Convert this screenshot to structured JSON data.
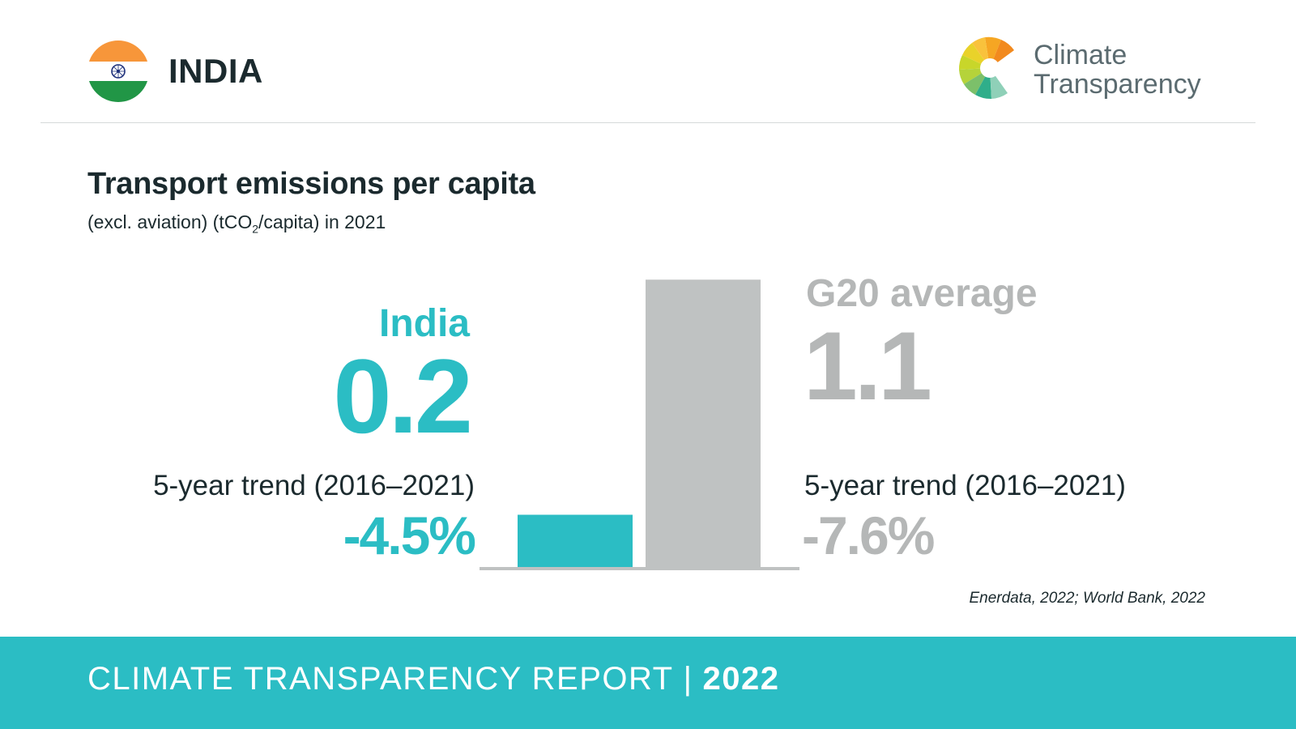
{
  "header": {
    "country": "INDIA",
    "logo_line1": "Climate",
    "logo_line2": "Transparency",
    "flag_icon": "india-flag-icon"
  },
  "chart_data": {
    "type": "bar",
    "title": "Transport emissions per capita",
    "subtitle_pre": "(excl. aviation) (tCO",
    "subtitle_sub": "2",
    "subtitle_post": "/capita) in 2021",
    "categories": [
      "India",
      "G20 average"
    ],
    "values": [
      0.2,
      1.1
    ],
    "value_labels": [
      "0.2",
      "1.1"
    ],
    "colors": [
      "#2bbdc4",
      "#bfc2c2"
    ],
    "ylim": [
      0,
      1.2
    ],
    "grid": false,
    "trends": [
      {
        "label": "5-year trend (2016–2021)",
        "value": "-4.5%"
      },
      {
        "label": "5-year trend (2016–2021)",
        "value": "-7.6%"
      }
    ]
  },
  "source": "Enerdata, 2022; World Bank, 2022",
  "footer": {
    "title": "CLIMATE TRANSPARENCY REPORT",
    "separator": "|",
    "year": "2022"
  },
  "colors": {
    "accent": "#2bbdc4",
    "grey": "#b5b7b7",
    "dark": "#1b2a2e"
  }
}
